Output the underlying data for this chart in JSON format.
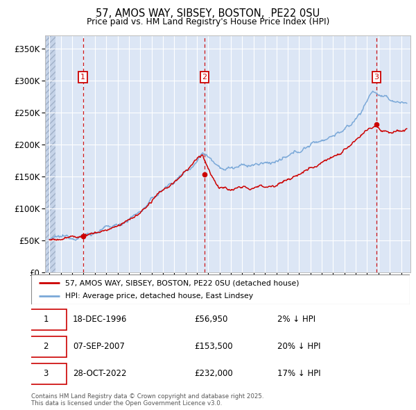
{
  "title1": "57, AMOS WAY, SIBSEY, BOSTON,  PE22 0SU",
  "title2": "Price paid vs. HM Land Registry's House Price Index (HPI)",
  "ytick_vals": [
    0,
    50000,
    100000,
    150000,
    200000,
    250000,
    300000,
    350000
  ],
  "ylim": [
    0,
    370000
  ],
  "xlim_start": 1993.6,
  "xlim_end": 2025.8,
  "sale_dates": [
    1996.96,
    2007.68,
    2022.83
  ],
  "sale_prices": [
    56950,
    153500,
    232000
  ],
  "sale_labels": [
    "1",
    "2",
    "3"
  ],
  "vline_color": "#cc0000",
  "sale_marker_color": "#cc0000",
  "legend_label_red": "57, AMOS WAY, SIBSEY, BOSTON, PE22 0SU (detached house)",
  "legend_label_blue": "HPI: Average price, detached house, East Lindsey",
  "table_entries": [
    {
      "label": "1",
      "date": "18-DEC-1996",
      "price": "£56,950",
      "hpi": "2% ↓ HPI"
    },
    {
      "label": "2",
      "date": "07-SEP-2007",
      "price": "£153,500",
      "hpi": "20% ↓ HPI"
    },
    {
      "label": "3",
      "date": "28-OCT-2022",
      "price": "£232,000",
      "hpi": "17% ↓ HPI"
    }
  ],
  "footnote": "Contains HM Land Registry data © Crown copyright and database right 2025.\nThis data is licensed under the Open Government Licence v3.0.",
  "plot_bg_color": "#dce6f5",
  "grid_color": "#ffffff",
  "red_line_color": "#cc0000",
  "blue_line_color": "#7aa8d8",
  "hatch_color": "#c5d3e8"
}
